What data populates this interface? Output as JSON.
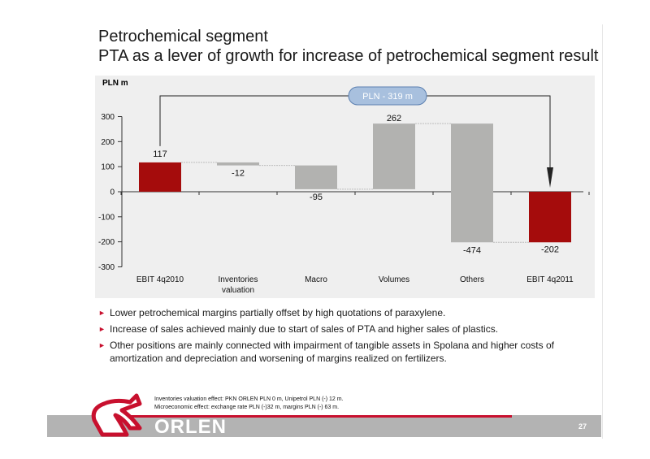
{
  "title": {
    "line1": "Petrochemical segment",
    "line2": "PTA as a lever of growth for increase of petrochemical segment result"
  },
  "colors": {
    "accent_red": "#c8102e",
    "bar_red": "#a50c0c",
    "bar_grey": "#b2b2b0",
    "panel": "#efefef",
    "footer_grey": "#b3b3b3"
  },
  "chart_data": {
    "type": "bar",
    "subtype": "waterfall",
    "unit_label": "PLN m",
    "categories": [
      "EBIT 4q2010",
      "Inventories valuation",
      "Macro",
      "Volumes",
      "Others",
      "EBIT 4q2011"
    ],
    "category_labels": [
      [
        "EBIT 4q2010"
      ],
      [
        "Inventories",
        "valuation"
      ],
      [
        "Macro"
      ],
      [
        "Volumes"
      ],
      [
        "Others"
      ],
      [
        "EBIT 4q2011"
      ]
    ],
    "values": [
      117,
      -12,
      -95,
      262,
      -474,
      -202
    ],
    "value_labels": [
      "117",
      "-12",
      "-95",
      "262",
      "-474",
      "-202"
    ],
    "bar_kind": [
      "total",
      "delta",
      "delta",
      "delta",
      "delta",
      "total"
    ],
    "ylim": [
      -300,
      300
    ],
    "yticks": [
      300,
      200,
      100,
      0,
      -100,
      -200,
      -300
    ],
    "ytick_labels": [
      "300",
      "200",
      "100",
      "0",
      "-100",
      "-200",
      "-300"
    ],
    "callout": "PLN - 319 m",
    "legend": "none"
  },
  "bullets": [
    "Lower petrochemical margins partially offset by high quotations of paraxylene.",
    "Increase of sales achieved mainly due to start of sales of PTA and higher sales of plastics.",
    "Other positions are mainly connected with impairment of tangible assets in Spolana and higher costs of amortization and depreciation and worsening of margins realized on fertilizers."
  ],
  "footnotes": [
    "Inventories valuation effect: PKN ORLEN PLN 0 m, Unipetrol PLN (-) 12 m.",
    "Microeconomic effect: exchange rate  PLN (-)32 m, margins PLN (-) 63 m."
  ],
  "logo_text": "ORLEN",
  "page_number": "27"
}
